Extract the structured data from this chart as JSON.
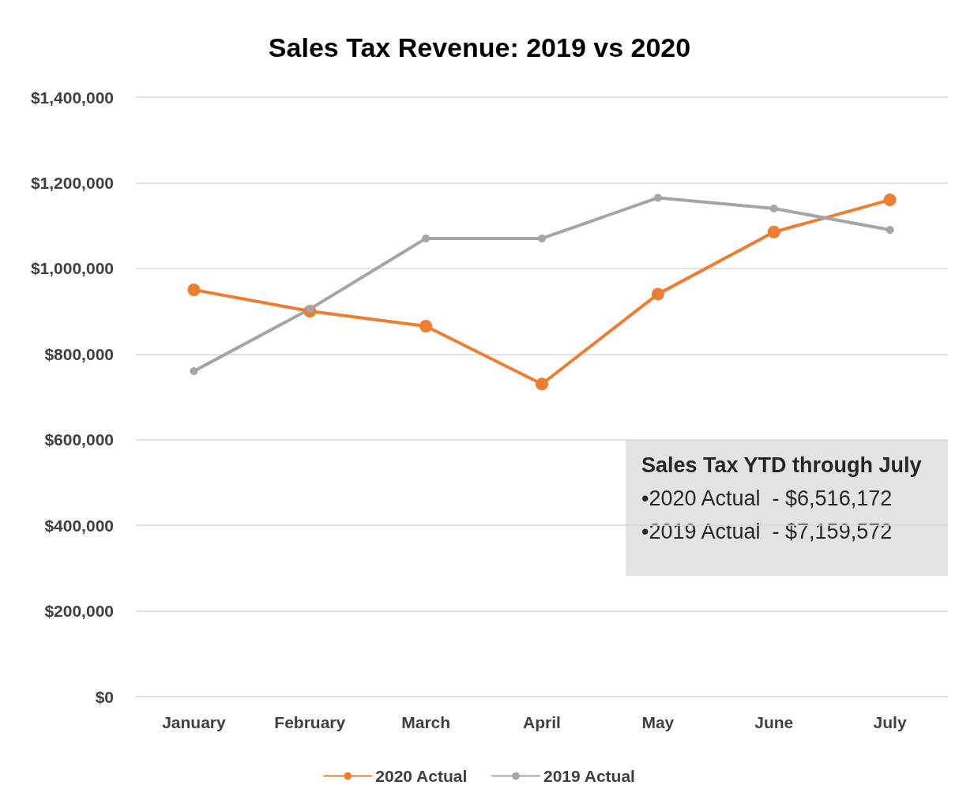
{
  "chart_data": {
    "type": "line",
    "title": "Sales Tax Revenue: 2019 vs 2020",
    "categories": [
      "January",
      "February",
      "March",
      "April",
      "May",
      "June",
      "July"
    ],
    "series": [
      {
        "name": "2020 Actual",
        "color": "#ed7d31",
        "values": [
          950000,
          900000,
          865000,
          730000,
          940000,
          1085000,
          1160000
        ]
      },
      {
        "name": "2019 Actual",
        "color": "#a5a5a5",
        "values": [
          760000,
          905000,
          1070000,
          1070000,
          1165000,
          1140000,
          1090000
        ]
      }
    ],
    "ylim": [
      0,
      1400000
    ],
    "yticks": [
      {
        "value": 0,
        "label": "$0"
      },
      {
        "value": 200000,
        "label": "$200,000"
      },
      {
        "value": 400000,
        "label": "$400,000"
      },
      {
        "value": 600000,
        "label": "$600,000"
      },
      {
        "value": 800000,
        "label": "$800,000"
      },
      {
        "value": 1000000,
        "label": "$1,000,000"
      },
      {
        "value": 1200000,
        "label": "$1,200,000"
      },
      {
        "value": 1400000,
        "label": "$1,400,000"
      }
    ],
    "annotations": [
      "Sales Tax YTD through July",
      "•2020 Actual  - $6,516,172",
      "•2019 Actual  - $7,159,572"
    ],
    "grid": "y",
    "legend": "bottom",
    "marker": "circle",
    "line_style": "solid"
  }
}
